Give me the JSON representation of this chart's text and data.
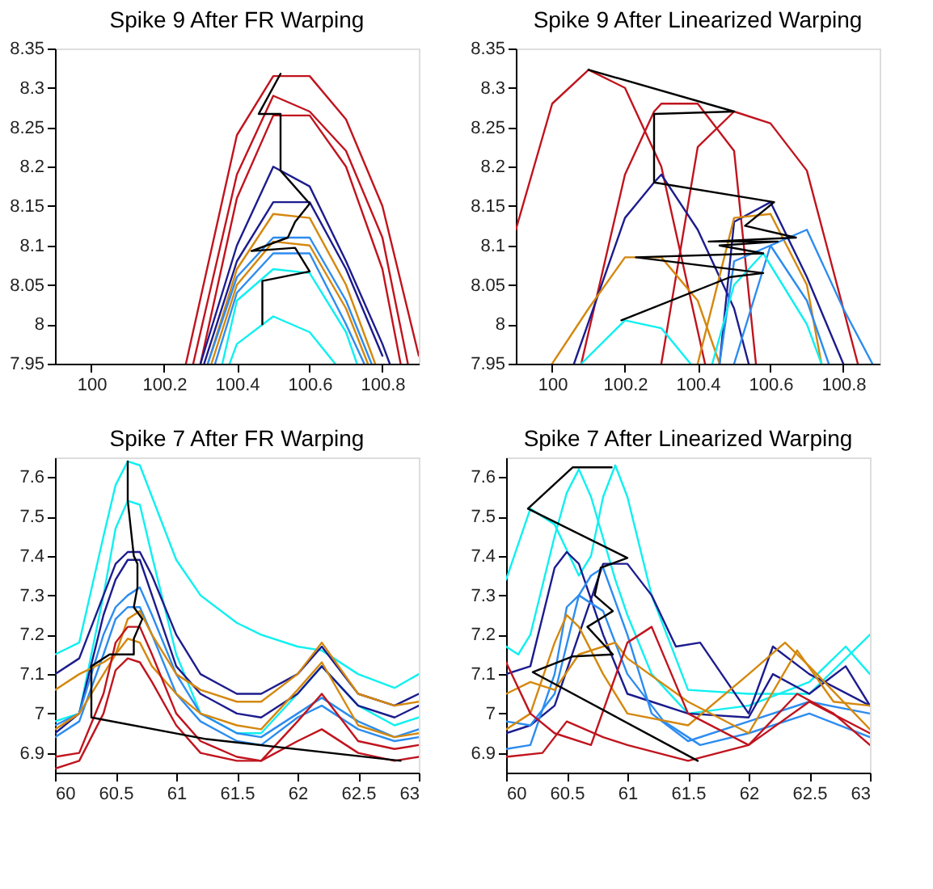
{
  "chart_data": [
    {
      "type": "line",
      "title": "Spike 9 After FR Warping",
      "xlim": [
        99.9,
        100.9
      ],
      "xticks": [
        100,
        100.2,
        100.4,
        100.6,
        100.8
      ],
      "ylim": [
        7.95,
        8.35
      ],
      "yticks": [
        7.95,
        8,
        8.05,
        8.1,
        8.15,
        8.2,
        8.25,
        8.3,
        8.35
      ],
      "grid": false,
      "legend": false,
      "series": [
        {
          "color": "#c0141e",
          "x": [
            100.26,
            100.4,
            100.5,
            100.6,
            100.7,
            100.8,
            100.9
          ],
          "values": [
            7.95,
            8.24,
            8.315,
            8.315,
            8.26,
            8.15,
            7.96
          ]
        },
        {
          "color": "#c0141e",
          "x": [
            100.28,
            100.4,
            100.5,
            100.6,
            100.7,
            100.8,
            100.87
          ],
          "values": [
            7.95,
            8.19,
            8.29,
            8.27,
            8.22,
            8.11,
            7.95
          ]
        },
        {
          "color": "#c0141e",
          "x": [
            100.3,
            100.4,
            100.5,
            100.6,
            100.7,
            100.8,
            100.85
          ],
          "values": [
            7.95,
            8.16,
            8.265,
            8.265,
            8.2,
            8.07,
            7.95
          ]
        },
        {
          "color": "#1c1c8e",
          "x": [
            100.3,
            100.4,
            100.5,
            100.6,
            100.7,
            100.8,
            100.82
          ],
          "values": [
            7.95,
            8.1,
            8.2,
            8.175,
            8.08,
            7.975,
            7.95
          ]
        },
        {
          "color": "#1c1c8e",
          "x": [
            100.31,
            100.4,
            100.5,
            100.6,
            100.7,
            100.8
          ],
          "values": [
            7.95,
            8.08,
            8.155,
            8.155,
            8.07,
            7.96
          ]
        },
        {
          "color": "#d4880e",
          "x": [
            100.32,
            100.4,
            100.5,
            100.6,
            100.7,
            100.78
          ],
          "values": [
            7.95,
            8.07,
            8.14,
            8.135,
            8.05,
            7.95
          ]
        },
        {
          "color": "#d4880e",
          "x": [
            100.33,
            100.4,
            100.5,
            100.6,
            100.7,
            100.76
          ],
          "values": [
            7.95,
            8.05,
            8.105,
            8.1,
            8.02,
            7.95
          ]
        },
        {
          "color": "#2c8cf0",
          "x": [
            100.32,
            100.4,
            100.5,
            100.6,
            100.7,
            100.77
          ],
          "values": [
            7.95,
            8.06,
            8.11,
            8.11,
            8.03,
            7.95
          ]
        },
        {
          "color": "#2c8cf0",
          "x": [
            100.34,
            100.4,
            100.5,
            100.6,
            100.7,
            100.75
          ],
          "values": [
            7.95,
            8.04,
            8.09,
            8.09,
            8.0,
            7.95
          ]
        },
        {
          "color": "#10f0f0",
          "x": [
            100.36,
            100.4,
            100.5,
            100.6,
            100.7,
            100.73
          ],
          "values": [
            7.95,
            8.03,
            8.07,
            8.065,
            7.99,
            7.95
          ]
        },
        {
          "color": "#10f0f0",
          "x": [
            100.38,
            100.4,
            100.5,
            100.6,
            100.67
          ],
          "values": [
            7.95,
            7.975,
            8.01,
            7.99,
            7.95
          ]
        },
        {
          "color": "#000000",
          "x": [
            100.52,
            100.46,
            100.52,
            100.52,
            100.6,
            100.56,
            100.54,
            100.44,
            100.56,
            100.6,
            100.47,
            100.47
          ],
          "values": [
            8.318,
            8.267,
            8.267,
            8.195,
            8.153,
            8.13,
            8.11,
            8.093,
            8.097,
            8.067,
            8.055,
            8.0
          ]
        }
      ]
    },
    {
      "type": "line",
      "title": "Spike 9 After Linearized Warping",
      "xlim": [
        99.9,
        100.9
      ],
      "xticks": [
        100,
        100.2,
        100.4,
        100.6,
        100.8
      ],
      "ylim": [
        7.95,
        8.35
      ],
      "yticks": [
        7.95,
        8,
        8.05,
        8.1,
        8.15,
        8.2,
        8.25,
        8.3,
        8.35
      ],
      "grid": false,
      "legend": false,
      "series": [
        {
          "color": "#c0141e",
          "x": [
            99.9,
            100,
            100.1,
            100.2,
            100.3,
            100.42
          ],
          "values": [
            8.12,
            8.28,
            8.323,
            8.3,
            8.2,
            7.95
          ]
        },
        {
          "color": "#c0141e",
          "x": [
            100.08,
            100.2,
            100.28,
            100.3,
            100.4,
            100.5,
            100.56
          ],
          "values": [
            7.95,
            8.19,
            8.27,
            8.28,
            8.28,
            8.22,
            7.95
          ]
        },
        {
          "color": "#c0141e",
          "x": [
            100.3,
            100.4,
            100.5,
            100.6,
            100.7,
            100.8,
            100.84
          ],
          "values": [
            7.95,
            8.225,
            8.27,
            8.255,
            8.195,
            8.02,
            7.95
          ]
        },
        {
          "color": "#1c1c8e",
          "x": [
            100.06,
            100.2,
            100.28,
            100.3,
            100.4,
            100.5,
            100.54
          ],
          "values": [
            7.95,
            8.135,
            8.18,
            8.19,
            8.12,
            8.02,
            7.95
          ]
        },
        {
          "color": "#1c1c8e",
          "x": [
            100.46,
            100.5,
            100.6,
            100.7,
            100.8
          ],
          "values": [
            7.95,
            8.13,
            8.155,
            8.06,
            7.95
          ]
        },
        {
          "color": "#d4880e",
          "x": [
            100.0,
            100.1,
            100.2,
            100.3,
            100.4,
            100.46
          ],
          "values": [
            7.95,
            8.02,
            8.085,
            8.085,
            8.03,
            7.95
          ]
        },
        {
          "color": "#d4880e",
          "x": [
            100.4,
            100.5,
            100.6,
            100.7,
            100.74
          ],
          "values": [
            7.95,
            8.135,
            8.14,
            8.05,
            7.95
          ]
        },
        {
          "color": "#2c8cf0",
          "x": [
            100.5,
            100.6,
            100.7,
            100.8,
            100.88
          ],
          "values": [
            7.95,
            8.1,
            8.12,
            8.02,
            7.95
          ]
        },
        {
          "color": "#2c8cf0",
          "x": [
            100.46,
            100.5,
            100.6,
            100.7,
            100.76
          ],
          "values": [
            7.95,
            8.08,
            8.1,
            8.03,
            7.95
          ]
        },
        {
          "color": "#10f0f0",
          "x": [
            100.08,
            100.2,
            100.3,
            100.38
          ],
          "values": [
            7.95,
            8.005,
            7.995,
            7.95
          ]
        },
        {
          "color": "#10f0f0",
          "x": [
            100.44,
            100.5,
            100.58,
            100.7,
            100.74
          ],
          "values": [
            7.95,
            8.05,
            8.09,
            8.0,
            7.95
          ]
        },
        {
          "color": "#000000",
          "x": [
            100.1,
            100.5,
            100.28,
            100.28,
            100.61,
            100.53,
            100.67,
            100.43,
            100.62,
            100.46,
            100.58,
            100.23,
            100.58,
            100.49,
            100.19
          ],
          "values": [
            8.323,
            8.27,
            8.267,
            8.18,
            8.155,
            8.125,
            8.11,
            8.105,
            8.105,
            8.1,
            8.09,
            8.085,
            8.065,
            8.06,
            8.005
          ]
        }
      ]
    },
    {
      "type": "line",
      "title": "Spike 7 After FR Warping",
      "xlim": [
        60,
        63
      ],
      "xticks": [
        60,
        60.5,
        61,
        61.5,
        62,
        62.5,
        63
      ],
      "ylim": [
        6.85,
        7.65
      ],
      "yticks": [
        6.9,
        7,
        7.1,
        7.2,
        7.3,
        7.4,
        7.5,
        7.6
      ],
      "grid": false,
      "legend": false,
      "x": [
        60,
        60.2,
        60.4,
        60.5,
        60.6,
        60.7,
        60.8,
        61,
        61.2,
        61.5,
        61.7,
        62,
        62.2,
        62.5,
        62.8,
        63
      ],
      "series": [
        {
          "color": "#10f0f0",
          "values": [
            7.15,
            7.18,
            7.45,
            7.58,
            7.64,
            7.63,
            7.55,
            7.39,
            7.3,
            7.23,
            7.2,
            7.17,
            7.16,
            7.1,
            7.065,
            7.1
          ]
        },
        {
          "color": "#10f0f0",
          "values": [
            6.98,
            7.0,
            7.3,
            7.47,
            7.54,
            7.53,
            7.4,
            7.15,
            7.0,
            6.95,
            6.95,
            7.05,
            7.12,
            7.02,
            6.97,
            6.99
          ]
        },
        {
          "color": "#1c1c8e",
          "values": [
            7.1,
            7.14,
            7.3,
            7.38,
            7.41,
            7.41,
            7.35,
            7.2,
            7.1,
            7.05,
            7.05,
            7.1,
            7.17,
            7.05,
            7.02,
            7.05
          ]
        },
        {
          "color": "#1c1c8e",
          "values": [
            6.95,
            7.0,
            7.25,
            7.34,
            7.39,
            7.39,
            7.3,
            7.12,
            7.05,
            7.0,
            6.99,
            7.05,
            7.12,
            7.02,
            6.99,
            7.02
          ]
        },
        {
          "color": "#2c8cf0",
          "values": [
            6.97,
            7.0,
            7.2,
            7.27,
            7.3,
            7.32,
            7.25,
            7.1,
            7.0,
            6.95,
            6.94,
            7.0,
            7.04,
            6.98,
            6.94,
            6.96
          ]
        },
        {
          "color": "#2c8cf0",
          "values": [
            6.94,
            6.98,
            7.15,
            7.24,
            7.27,
            7.27,
            7.2,
            7.05,
            6.98,
            6.93,
            6.92,
            6.99,
            7.02,
            6.96,
            6.93,
            6.94
          ]
        },
        {
          "color": "#d4880e",
          "values": [
            7.06,
            7.1,
            7.13,
            7.15,
            7.24,
            7.26,
            7.2,
            7.1,
            7.06,
            7.03,
            7.03,
            7.1,
            7.18,
            7.05,
            7.02,
            7.03
          ]
        },
        {
          "color": "#d4880e",
          "values": [
            6.96,
            7.0,
            7.1,
            7.15,
            7.19,
            7.18,
            7.12,
            7.05,
            7.0,
            6.97,
            6.96,
            7.06,
            7.13,
            6.97,
            6.94,
            6.95
          ]
        },
        {
          "color": "#c0141e",
          "values": [
            6.89,
            6.9,
            7.05,
            7.18,
            7.22,
            7.22,
            7.15,
            7.0,
            6.93,
            6.89,
            6.88,
            6.98,
            7.05,
            6.93,
            6.91,
            6.92
          ]
        },
        {
          "color": "#c0141e",
          "values": [
            6.86,
            6.88,
            7.0,
            7.11,
            7.14,
            7.13,
            7.08,
            6.97,
            6.9,
            6.88,
            6.88,
            6.93,
            6.96,
            6.9,
            6.88,
            6.89
          ]
        },
        {
          "color": "#000000",
          "x": [
            60.6,
            60.6,
            60.65,
            60.68,
            60.68,
            60.65,
            60.72,
            60.65,
            60.65,
            60.45,
            60.3,
            60.3,
            61.25,
            62.85
          ],
          "values": [
            7.64,
            7.54,
            7.4,
            7.38,
            7.32,
            7.27,
            7.24,
            7.19,
            7.15,
            7.15,
            7.12,
            6.99,
            6.935,
            6.88
          ]
        }
      ]
    },
    {
      "type": "line",
      "title": "Spike 7 After Linearized Warping",
      "xlim": [
        60,
        63
      ],
      "xticks": [
        60,
        60.5,
        61,
        61.5,
        62,
        62.5,
        63
      ],
      "ylim": [
        6.85,
        7.65
      ],
      "yticks": [
        6.9,
        7,
        7.1,
        7.2,
        7.3,
        7.4,
        7.5,
        7.6
      ],
      "grid": false,
      "legend": false,
      "series": [
        {
          "color": "#10f0f0",
          "x": [
            60,
            60.1,
            60.2,
            60.4,
            60.5,
            60.6,
            60.7,
            60.9,
            61,
            61.2,
            61.5,
            62,
            62.5,
            62.8,
            63
          ],
          "values": [
            7.17,
            7.15,
            7.2,
            7.45,
            7.56,
            7.62,
            7.55,
            7.34,
            7.25,
            7.1,
            7.0,
            7.02,
            7.08,
            7.17,
            7.1
          ]
        },
        {
          "color": "#10f0f0",
          "x": [
            60,
            60.2,
            60.4,
            60.6,
            60.7,
            60.8,
            60.9,
            61,
            61.2,
            61.5,
            62,
            62.5,
            63
          ],
          "values": [
            7.34,
            7.52,
            7.48,
            7.35,
            7.4,
            7.55,
            7.63,
            7.55,
            7.3,
            7.06,
            7.05,
            7.05,
            7.2
          ]
        },
        {
          "color": "#1c1c8e",
          "x": [
            60,
            60.2,
            60.4,
            60.5,
            60.6,
            60.8,
            61,
            61.2,
            61.5,
            62,
            62.2,
            62.5,
            62.8,
            63
          ],
          "values": [
            7.1,
            7.12,
            7.37,
            7.41,
            7.38,
            7.2,
            7.05,
            7.03,
            7.0,
            6.99,
            7.1,
            7.05,
            7.12,
            7.02
          ]
        },
        {
          "color": "#1c1c8e",
          "x": [
            60,
            60.2,
            60.4,
            60.6,
            60.8,
            61,
            61.2,
            61.4,
            61.6,
            62,
            62.2,
            62.5,
            63
          ],
          "values": [
            6.95,
            6.97,
            7.02,
            7.2,
            7.38,
            7.38,
            7.3,
            7.17,
            7.18,
            7.0,
            7.17,
            7.1,
            7.02
          ]
        },
        {
          "color": "#2c8cf0",
          "x": [
            60,
            60.2,
            60.4,
            60.6,
            60.7,
            60.8,
            61,
            61.2,
            61.5,
            62,
            62.5,
            63
          ],
          "values": [
            6.98,
            6.97,
            7.05,
            7.3,
            7.35,
            7.37,
            7.2,
            7.0,
            6.93,
            6.98,
            7.03,
            7.0
          ]
        },
        {
          "color": "#2c8cf0",
          "x": [
            60,
            60.2,
            60.4,
            60.5,
            60.6,
            60.8,
            61,
            61.3,
            61.6,
            62,
            62.5,
            63
          ],
          "values": [
            6.91,
            6.92,
            7.1,
            7.27,
            7.3,
            7.26,
            7.1,
            6.98,
            6.92,
            6.95,
            7.0,
            6.94
          ]
        },
        {
          "color": "#d4880e",
          "x": [
            60,
            60.2,
            60.4,
            60.5,
            60.6,
            60.8,
            61,
            61.5,
            62,
            62.3,
            62.5,
            63
          ],
          "values": [
            6.96,
            7.0,
            7.18,
            7.25,
            7.22,
            7.1,
            7.0,
            6.97,
            7.1,
            7.18,
            7.12,
            6.96
          ]
        },
        {
          "color": "#d4880e",
          "x": [
            60,
            60.2,
            60.4,
            60.6,
            60.9,
            61,
            61.5,
            62,
            62.4,
            62.7,
            63
          ],
          "values": [
            7.05,
            7.08,
            7.06,
            7.15,
            7.18,
            7.14,
            7.03,
            6.95,
            7.16,
            7.03,
            7.02
          ]
        },
        {
          "color": "#c0141e",
          "x": [
            60,
            60.2,
            60.4,
            60.7,
            61,
            61.2,
            61.5,
            62,
            62.4,
            62.7,
            63
          ],
          "values": [
            7.13,
            7.0,
            6.95,
            6.92,
            7.18,
            7.22,
            7.0,
            6.92,
            7.05,
            7.0,
            6.92
          ]
        },
        {
          "color": "#c0141e",
          "x": [
            60,
            60.3,
            60.5,
            60.8,
            61,
            61.5,
            62,
            62.5,
            63
          ],
          "values": [
            6.89,
            6.9,
            6.98,
            6.94,
            6.92,
            6.88,
            6.92,
            7.03,
            6.95
          ]
        },
        {
          "color": "#000000",
          "x": [
            60.87,
            60.55,
            60.18,
            61.0,
            60.78,
            60.73,
            60.88,
            60.67,
            60.88,
            60.55,
            60.22,
            61.58
          ],
          "values": [
            7.625,
            7.625,
            7.52,
            7.395,
            7.37,
            7.3,
            7.26,
            7.22,
            7.15,
            7.145,
            7.105,
            6.88
          ]
        }
      ]
    }
  ]
}
